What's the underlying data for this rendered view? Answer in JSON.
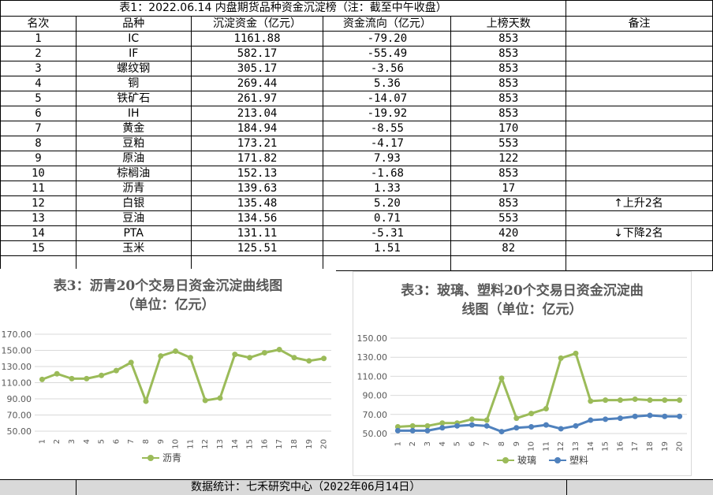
{
  "table": {
    "title": "表1：2022.06.14 内盘期货品种资金沉淀榜（注：截至中午收盘）",
    "headers": [
      "名次",
      "品种",
      "沉淀资金（亿元）",
      "资金流向（亿元）",
      "上榜天数",
      "备注"
    ],
    "rows": [
      {
        "rank": "1",
        "name": "IC",
        "capital": "1161.88",
        "flow": "-79.20",
        "days": "853",
        "note": ""
      },
      {
        "rank": "2",
        "name": "IF",
        "capital": "582.17",
        "flow": "-55.49",
        "days": "853",
        "note": ""
      },
      {
        "rank": "3",
        "name": "螺纹钢",
        "capital": "305.17",
        "flow": "-3.56",
        "days": "853",
        "note": ""
      },
      {
        "rank": "4",
        "name": "铜",
        "capital": "269.44",
        "flow": "5.36",
        "days": "853",
        "note": ""
      },
      {
        "rank": "5",
        "name": "铁矿石",
        "capital": "261.97",
        "flow": "-14.07",
        "days": "853",
        "note": ""
      },
      {
        "rank": "6",
        "name": "IH",
        "capital": "213.04",
        "flow": "-19.92",
        "days": "853",
        "note": ""
      },
      {
        "rank": "7",
        "name": "黄金",
        "capital": "184.94",
        "flow": "-8.55",
        "days": "170",
        "note": ""
      },
      {
        "rank": "8",
        "name": "豆粕",
        "capital": "173.21",
        "flow": "-4.17",
        "days": "553",
        "note": ""
      },
      {
        "rank": "9",
        "name": "原油",
        "capital": "171.82",
        "flow": "7.93",
        "days": "122",
        "note": ""
      },
      {
        "rank": "10",
        "name": "棕榈油",
        "capital": "152.13",
        "flow": "-1.68",
        "days": "853",
        "note": ""
      },
      {
        "rank": "11",
        "name": "沥青",
        "capital": "139.63",
        "flow": "1.33",
        "days": "17",
        "note": ""
      },
      {
        "rank": "12",
        "name": "白银",
        "capital": "135.48",
        "flow": "5.20",
        "days": "853",
        "note": "↑上升2名"
      },
      {
        "rank": "13",
        "name": "豆油",
        "capital": "134.56",
        "flow": "0.71",
        "days": "553",
        "note": ""
      },
      {
        "rank": "14",
        "name": "PTA",
        "capital": "131.11",
        "flow": "-5.31",
        "days": "420",
        "note": "↓下降2名"
      },
      {
        "rank": "15",
        "name": "玉米",
        "capital": "125.51",
        "flow": "1.51",
        "days": "82",
        "note": ""
      }
    ]
  },
  "chart_data": [
    {
      "type": "line",
      "title": "表3：沥青20个交易日资金沉淀曲线图",
      "subtitle": "（单位：亿元）",
      "categories": [
        "1",
        "2",
        "3",
        "4",
        "5",
        "6",
        "7",
        "8",
        "9",
        "10",
        "11",
        "12",
        "13",
        "14",
        "15",
        "16",
        "17",
        "18",
        "19",
        "20"
      ],
      "ylim": [
        50,
        170
      ],
      "yticks": [
        "50.00",
        "70.00",
        "90.00",
        "110.00",
        "130.00",
        "150.00",
        "170.00"
      ],
      "grid": true,
      "legend": "bottom",
      "series": [
        {
          "name": "沥青",
          "color": "#9bbb59",
          "values": [
            114,
            121,
            115,
            115,
            119,
            125,
            135,
            87,
            143,
            149,
            141,
            88,
            91,
            145,
            141,
            147,
            151,
            141,
            137,
            140
          ]
        }
      ]
    },
    {
      "type": "line",
      "title": "表3：玻璃、塑料20个交易日资金沉淀曲",
      "subtitle": "线图（单位：亿元）",
      "categories": [
        "1",
        "2",
        "3",
        "4",
        "5",
        "6",
        "7",
        "8",
        "9",
        "10",
        "11",
        "12",
        "13",
        "14",
        "15",
        "16",
        "17",
        "18",
        "19",
        "20"
      ],
      "ylim": [
        50,
        150
      ],
      "yticks": [
        "50.00",
        "70.00",
        "90.00",
        "110.00",
        "130.00",
        "150.00"
      ],
      "grid": true,
      "legend": "bottom",
      "series": [
        {
          "name": "玻璃",
          "color": "#9bbb59",
          "values": [
            57,
            58,
            58,
            61,
            61,
            65,
            64,
            108,
            66,
            71,
            76,
            129,
            134,
            84,
            85,
            85,
            86,
            85,
            85,
            85
          ]
        },
        {
          "name": "塑料",
          "color": "#4f81bd",
          "values": [
            53,
            53,
            53,
            56,
            58,
            59,
            58,
            52,
            56,
            57,
            59,
            55,
            58,
            64,
            65,
            66,
            68,
            69,
            68,
            68
          ]
        }
      ]
    }
  ],
  "footer": {
    "source": "数据统计：七禾研究中心（2022年06月14日）"
  }
}
